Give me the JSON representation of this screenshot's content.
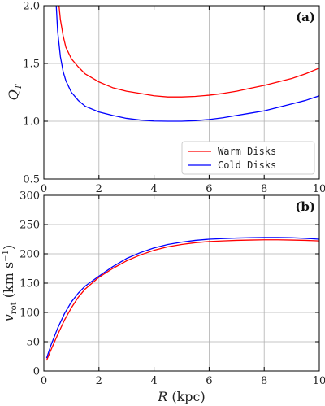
{
  "chart_data": [
    {
      "type": "line",
      "panel_label": "(a)",
      "ylabel": "Q_T",
      "xlim": [
        0,
        10
      ],
      "ylim": [
        0.5,
        2.0
      ],
      "xticks": [
        "0",
        "2",
        "4",
        "6",
        "8",
        "10"
      ],
      "yticks": [
        "0.5",
        "1.0",
        "1.5",
        "2.0"
      ],
      "grid": true,
      "legend_position": "lower-right",
      "series": [
        {
          "name": "Warm Disks",
          "color": "#ff0000",
          "x": [
            0.55,
            0.6,
            0.7,
            0.8,
            1.0,
            1.25,
            1.5,
            2.0,
            2.5,
            3.0,
            3.5,
            4.0,
            4.5,
            5.0,
            5.5,
            6.0,
            6.5,
            7.0,
            7.5,
            8.0,
            8.5,
            9.0,
            9.5,
            10.0
          ],
          "y": [
            2.0,
            1.88,
            1.74,
            1.64,
            1.54,
            1.47,
            1.41,
            1.34,
            1.29,
            1.26,
            1.24,
            1.22,
            1.21,
            1.21,
            1.215,
            1.225,
            1.24,
            1.26,
            1.285,
            1.31,
            1.34,
            1.37,
            1.41,
            1.46
          ]
        },
        {
          "name": "Cold Disks",
          "color": "#0000ff",
          "x": [
            0.45,
            0.5,
            0.6,
            0.7,
            0.8,
            1.0,
            1.25,
            1.5,
            2.0,
            2.5,
            3.0,
            3.5,
            4.0,
            4.5,
            5.0,
            5.5,
            6.0,
            6.5,
            7.0,
            7.5,
            8.0,
            8.5,
            9.0,
            9.5,
            10.0
          ],
          "y": [
            2.0,
            1.78,
            1.56,
            1.43,
            1.35,
            1.25,
            1.18,
            1.13,
            1.08,
            1.05,
            1.025,
            1.01,
            1.002,
            1.0,
            1.0,
            1.005,
            1.015,
            1.03,
            1.05,
            1.07,
            1.09,
            1.12,
            1.15,
            1.18,
            1.22
          ]
        }
      ]
    },
    {
      "type": "line",
      "panel_label": "(b)",
      "xlabel": "R (kpc)",
      "ylabel": "v_rot (km s^-1)",
      "xlim": [
        0,
        10
      ],
      "ylim": [
        0,
        300
      ],
      "xticks": [
        "0",
        "2",
        "4",
        "6",
        "8",
        "10"
      ],
      "yticks": [
        "0",
        "50",
        "100",
        "150",
        "200",
        "250",
        "300"
      ],
      "grid": true,
      "series": [
        {
          "name": "Warm Disks",
          "color": "#ff0000",
          "x": [
            0.1,
            0.25,
            0.5,
            0.75,
            1.0,
            1.25,
            1.5,
            2.0,
            2.5,
            3.0,
            3.5,
            4.0,
            4.5,
            5.0,
            5.5,
            6.0,
            6.5,
            7.0,
            7.5,
            8.0,
            8.5,
            9.0,
            9.5,
            10.0
          ],
          "y": [
            18,
            35,
            62,
            87,
            108,
            126,
            140,
            160,
            175,
            188,
            198,
            206,
            212,
            216,
            219,
            221,
            222,
            223,
            223.5,
            224,
            224,
            223.5,
            223,
            222
          ]
        },
        {
          "name": "Cold Disks",
          "color": "#0000ff",
          "x": [
            0.1,
            0.25,
            0.5,
            0.75,
            1.0,
            1.25,
            1.5,
            2.0,
            2.5,
            3.0,
            3.5,
            4.0,
            4.5,
            5.0,
            5.5,
            6.0,
            6.5,
            7.0,
            7.5,
            8.0,
            8.5,
            9.0,
            9.5,
            10.0
          ],
          "y": [
            22,
            43,
            73,
            98,
            118,
            133,
            145,
            162,
            178,
            192,
            202,
            210,
            216,
            220,
            223,
            225,
            226,
            227,
            227.5,
            228,
            228,
            227.5,
            226.5,
            225
          ]
        }
      ]
    }
  ]
}
